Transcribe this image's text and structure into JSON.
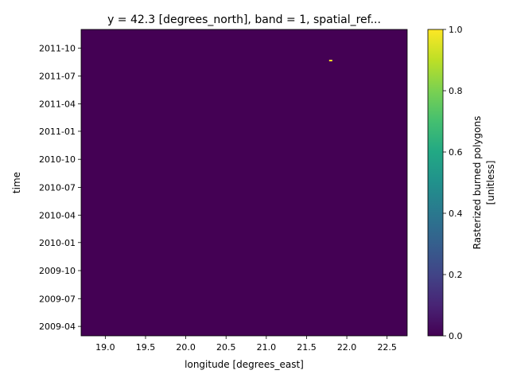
{
  "chart_data": {
    "type": "heatmap",
    "title": "y = 42.3 [degrees_north], band = 1, spatial_ref...",
    "xlabel": "longitude [degrees_east]",
    "ylabel": "time",
    "xlim": [
      18.7,
      22.75
    ],
    "ylim": [
      "2009-03-01",
      "2011-12-01"
    ],
    "x_ticks": [
      "19.0",
      "19.5",
      "20.0",
      "20.5",
      "21.0",
      "21.5",
      "22.0",
      "22.5"
    ],
    "y_ticks": [
      "2009-04",
      "2009-07",
      "2009-10",
      "2010-01",
      "2010-04",
      "2010-07",
      "2010-10",
      "2011-01",
      "2011-04",
      "2011-07",
      "2011-10"
    ],
    "background_value": 0,
    "highlight_cells": [
      {
        "longitude": 21.8,
        "time": "2011-08-21",
        "value": 1
      }
    ],
    "colorbar": {
      "label_line1": "Rasterized burned polygons",
      "label_line2": "[unitless]",
      "range": [
        0,
        1
      ],
      "ticks": [
        "0.0",
        "0.2",
        "0.4",
        "0.6",
        "0.8",
        "1.0"
      ],
      "colormap": "viridis"
    },
    "colors": {
      "low": "#440154",
      "high": "#fde725"
    }
  }
}
